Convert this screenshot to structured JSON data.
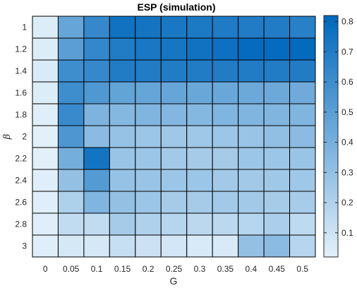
{
  "chart_data": {
    "type": "heatmap",
    "title": "ESP (simulation)",
    "xlabel": "G",
    "ylabel": "β",
    "x_categories": [
      "0",
      "0.05",
      "0.1",
      "0.15",
      "0.2",
      "0.25",
      "0.3",
      "0.35",
      "0.4",
      "0.45",
      "0.5"
    ],
    "y_categories": [
      "1",
      "1.2",
      "1.4",
      "1.6",
      "1.8",
      "2",
      "2.2",
      "2.4",
      "2.6",
      "2.8",
      "3"
    ],
    "values": [
      [
        0.04,
        0.46,
        0.63,
        0.76,
        0.75,
        0.73,
        0.72,
        0.71,
        0.7,
        0.7,
        0.68
      ],
      [
        0.04,
        0.5,
        0.64,
        0.7,
        0.73,
        0.74,
        0.76,
        0.77,
        0.8,
        0.8,
        0.81
      ],
      [
        0.05,
        0.6,
        0.63,
        0.7,
        0.7,
        0.7,
        0.7,
        0.7,
        0.7,
        0.7,
        0.7
      ],
      [
        0.04,
        0.6,
        0.54,
        0.47,
        0.46,
        0.46,
        0.45,
        0.45,
        0.44,
        0.44,
        0.43
      ],
      [
        0.03,
        0.62,
        0.38,
        0.35,
        0.37,
        0.36,
        0.35,
        0.37,
        0.37,
        0.37,
        0.37
      ],
      [
        0.02,
        0.55,
        0.33,
        0.29,
        0.27,
        0.26,
        0.26,
        0.27,
        0.28,
        0.31,
        0.33
      ],
      [
        0.02,
        0.41,
        0.75,
        0.28,
        0.27,
        0.25,
        0.24,
        0.24,
        0.27,
        0.27,
        0.28
      ],
      [
        0.03,
        0.3,
        0.52,
        0.29,
        0.28,
        0.27,
        0.27,
        0.25,
        0.25,
        0.26,
        0.26
      ],
      [
        0.03,
        0.21,
        0.37,
        0.3,
        0.27,
        0.24,
        0.24,
        0.25,
        0.25,
        0.24,
        0.23
      ],
      [
        0.03,
        0.14,
        0.14,
        0.24,
        0.2,
        0.18,
        0.16,
        0.16,
        0.18,
        0.22,
        0.15
      ],
      [
        0.03,
        0.07,
        0.07,
        0.12,
        0.1,
        0.08,
        0.06,
        0.06,
        0.3,
        0.33,
        0.18
      ]
    ],
    "colorbar": {
      "range": [
        0.02,
        0.82
      ],
      "ticks": [
        0.1,
        0.2,
        0.3,
        0.4,
        0.5,
        0.6,
        0.7,
        0.8
      ],
      "tick_labels": [
        "0.1",
        "0.2",
        "0.3",
        "0.4",
        "0.5",
        "0.6",
        "0.7",
        "0.8"
      ],
      "color_low": "#e3f0fa",
      "color_high": "#0068bc"
    },
    "grid": true,
    "legend": "colorbar-right"
  }
}
